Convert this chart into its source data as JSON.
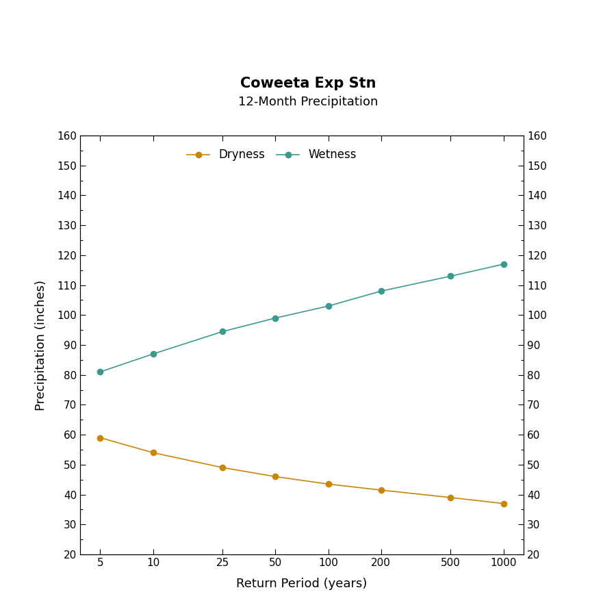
{
  "title_line1": "Coweeta Exp Stn",
  "title_line2": "12-Month Precipitation",
  "xlabel": "Return Period (years)",
  "ylabel": "Precipitation (inches)",
  "x_values": [
    5,
    10,
    25,
    50,
    100,
    200,
    500,
    1000
  ],
  "dryness_values": [
    59.0,
    54.0,
    49.0,
    46.0,
    43.5,
    41.5,
    39.0,
    37.0
  ],
  "wetness_values": [
    81.0,
    87.0,
    94.5,
    99.0,
    103.0,
    108.0,
    113.0,
    117.0
  ],
  "dryness_color": "#C8860A",
  "wetness_color": "#3A9A8E",
  "ylim": [
    20,
    160
  ],
  "yticks": [
    20,
    30,
    40,
    50,
    60,
    70,
    80,
    90,
    100,
    110,
    120,
    130,
    140,
    150,
    160
  ],
  "legend_labels": [
    "Dryness",
    "Wetness"
  ],
  "title1_fontsize": 15,
  "title2_fontsize": 13,
  "label_fontsize": 13,
  "tick_fontsize": 11,
  "legend_fontsize": 12,
  "line_width": 1.2,
  "marker_size": 6
}
